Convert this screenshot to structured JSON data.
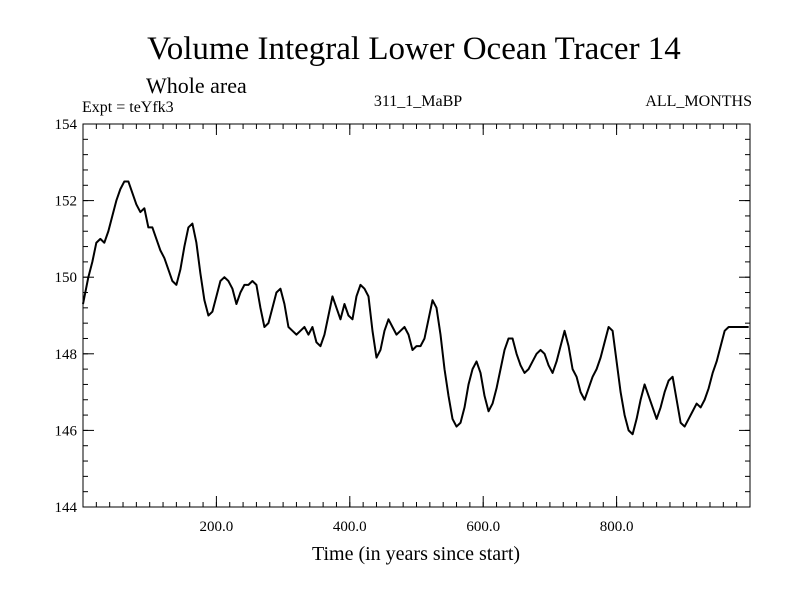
{
  "chart_data": {
    "type": "line",
    "title": "Volume Integral Lower Ocean Tracer 14",
    "subtitle": "Whole area",
    "expt_label": "Expt = teYfk3",
    "run_label": "311_1_MaBP",
    "months_label": "ALL_MONTHS",
    "xlabel": "Time (in years since start)",
    "ylabel": "",
    "xlim": [
      0,
      1000
    ],
    "ylim": [
      144,
      154
    ],
    "x_ticks": [
      200,
      400,
      600,
      800
    ],
    "x_tick_labels": [
      "200.0",
      "400.0",
      "600.0",
      "800.0"
    ],
    "x_minor_step": 20,
    "y_ticks": [
      144,
      146,
      148,
      150,
      152,
      154
    ],
    "y_tick_labels": [
      "144",
      "146",
      "148",
      "150",
      "152",
      "154"
    ],
    "y_minor_step": 0.4,
    "grid": false,
    "series": [
      {
        "name": "Volume Integral Lower Ocean Tracer 14",
        "x": [
          0,
          8,
          14,
          20,
          26,
          32,
          38,
          44,
          50,
          56,
          62,
          68,
          74,
          80,
          86,
          92,
          98,
          104,
          110,
          116,
          122,
          128,
          134,
          140,
          146,
          152,
          158,
          164,
          170,
          176,
          182,
          188,
          194,
          200,
          206,
          212,
          218,
          224,
          230,
          236,
          242,
          248,
          254,
          260,
          266,
          272,
          278,
          284,
          290,
          296,
          302,
          308,
          314,
          320,
          326,
          332,
          338,
          344,
          350,
          356,
          362,
          368,
          374,
          380,
          386,
          392,
          398,
          404,
          410,
          416,
          422,
          428,
          434,
          440,
          446,
          452,
          458,
          464,
          470,
          476,
          482,
          488,
          494,
          500,
          506,
          512,
          518,
          524,
          530,
          536,
          542,
          548,
          554,
          560,
          566,
          572,
          578,
          584,
          590,
          596,
          602,
          608,
          614,
          620,
          626,
          632,
          638,
          644,
          650,
          656,
          662,
          668,
          674,
          680,
          686,
          692,
          698,
          704,
          710,
          716,
          722,
          728,
          734,
          740,
          746,
          752,
          758,
          764,
          770,
          776,
          782,
          788,
          794,
          800,
          806,
          812,
          818,
          824,
          830,
          836,
          842,
          848,
          854,
          860,
          866,
          872,
          878,
          884,
          890,
          896,
          902,
          908,
          914,
          920,
          926,
          932,
          938,
          944,
          950,
          956,
          962,
          968,
          974,
          980,
          986,
          992,
          998
        ],
        "values": [
          149.3,
          150.0,
          150.4,
          150.9,
          151.0,
          150.9,
          151.2,
          151.6,
          152.0,
          152.3,
          152.5,
          152.5,
          152.2,
          151.9,
          151.7,
          151.8,
          151.3,
          151.3,
          151.0,
          150.7,
          150.5,
          150.2,
          149.9,
          149.8,
          150.2,
          150.8,
          151.3,
          151.4,
          150.9,
          150.1,
          149.4,
          149.0,
          149.1,
          149.5,
          149.9,
          150.0,
          149.9,
          149.7,
          149.3,
          149.6,
          149.8,
          149.8,
          149.9,
          149.8,
          149.2,
          148.7,
          148.8,
          149.2,
          149.6,
          149.7,
          149.3,
          148.7,
          148.6,
          148.5,
          148.6,
          148.7,
          148.5,
          148.7,
          148.3,
          148.2,
          148.5,
          149.0,
          149.5,
          149.2,
          148.9,
          149.3,
          149.0,
          148.9,
          149.5,
          149.8,
          149.7,
          149.5,
          148.6,
          147.9,
          148.1,
          148.6,
          148.9,
          148.7,
          148.5,
          148.6,
          148.7,
          148.5,
          148.1,
          148.2,
          148.2,
          148.4,
          148.9,
          149.4,
          149.2,
          148.5,
          147.6,
          146.9,
          146.3,
          146.1,
          146.2,
          146.6,
          147.2,
          147.6,
          147.8,
          147.5,
          146.9,
          146.5,
          146.7,
          147.1,
          147.6,
          148.1,
          148.4,
          148.4,
          148.0,
          147.7,
          147.5,
          147.6,
          147.8,
          148.0,
          148.1,
          148.0,
          147.7,
          147.5,
          147.8,
          148.2,
          148.6,
          148.2,
          147.6,
          147.4,
          147.0,
          146.8,
          147.1,
          147.4,
          147.6,
          147.9,
          148.3,
          148.7,
          148.6,
          147.8,
          147.0,
          146.4,
          146.0,
          145.9,
          146.3,
          146.8,
          147.2,
          146.9,
          146.6,
          146.3,
          146.6,
          147.0,
          147.3,
          147.4,
          146.8,
          146.2,
          146.1,
          146.3,
          146.5,
          146.7,
          146.6,
          146.8,
          147.1,
          147.5,
          147.8,
          148.2,
          148.6,
          148.7,
          148.7,
          148.7,
          148.7,
          148.7,
          148.7
        ]
      }
    ]
  }
}
